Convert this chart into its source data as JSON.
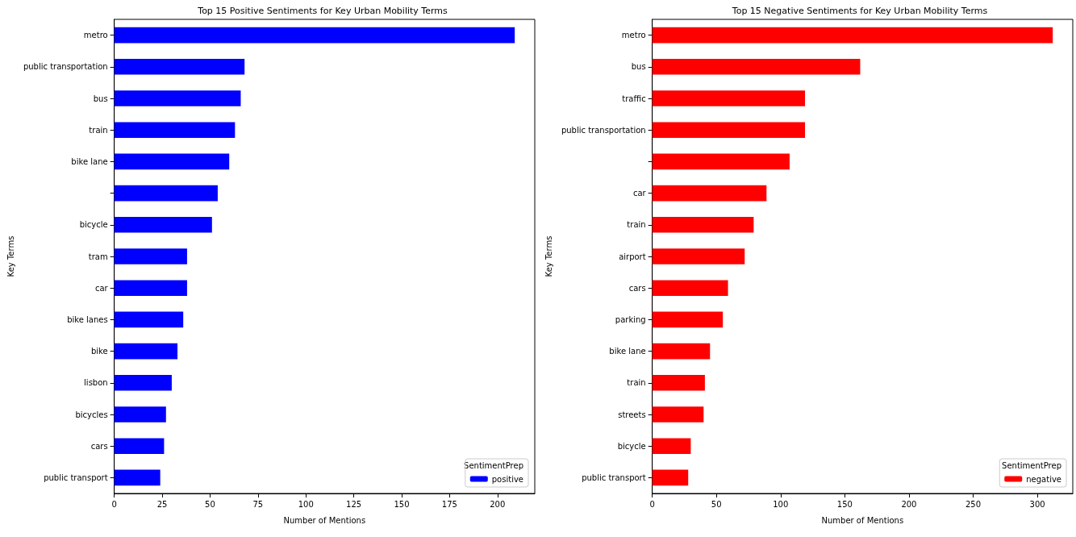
{
  "chart_data": [
    {
      "type": "bar",
      "orientation": "horizontal",
      "title": "Top 15 Positive Sentiments for Key Urban Mobility Terms",
      "xlabel": "Number of Mentions",
      "ylabel": "Key Terms",
      "legend_title": "SentimentPrep",
      "legend": "bottom right",
      "grid": false,
      "categories": [
        "metro",
        "public transportation",
        "bus",
        "train",
        "bike lane",
        null,
        "bicycle",
        "tram",
        "car",
        "bike lanes",
        "bike",
        "lisbon",
        "bicycles",
        "cars",
        "public transport"
      ],
      "series": [
        {
          "name": "positive",
          "color": "#0000ff",
          "values": [
            209,
            68,
            66,
            63,
            60,
            54,
            51,
            38,
            38,
            36,
            33,
            30,
            27,
            26,
            24
          ]
        }
      ],
      "xlim": [
        0,
        219.45
      ],
      "xticks": [
        0,
        25,
        50,
        75,
        100,
        125,
        150,
        175,
        200
      ]
    },
    {
      "type": "bar",
      "orientation": "horizontal",
      "title": "Top 15 Negative Sentiments for Key Urban Mobility Terms",
      "xlabel": "Number of Mentions",
      "ylabel": "Key Terms",
      "legend_title": "SentimentPrep",
      "legend": "bottom right",
      "grid": false,
      "categories": [
        "metro",
        "bus",
        "traffic",
        "public transportation",
        null,
        "car",
        "train",
        "airport",
        "cars",
        "parking",
        "bike lane",
        "train",
        "streets",
        "bicycle",
        "public transport"
      ],
      "series": [
        {
          "name": "negative",
          "color": "#ff0000",
          "values": [
            312,
            162,
            119,
            119,
            107,
            89,
            79,
            72,
            59,
            55,
            45,
            41,
            40,
            30,
            28
          ]
        }
      ],
      "xlim": [
        0,
        327.6
      ],
      "xticks": [
        0,
        50,
        100,
        150,
        200,
        250,
        300
      ]
    }
  ]
}
